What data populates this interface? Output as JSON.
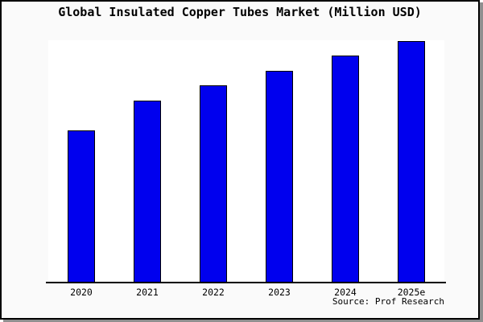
{
  "window": {
    "background_color": "#fafafa",
    "frame_border_color": "#000000",
    "shadow_color": "#8f8f8f"
  },
  "chart_data": {
    "type": "bar",
    "title": "Global Insulated Copper Tubes Market (Million USD)",
    "categories": [
      "2020",
      "2021",
      "2022",
      "2023",
      "2024",
      "2025e"
    ],
    "values": [
      62.8,
      75.1,
      81.4,
      87.4,
      93.7,
      99.7
    ],
    "value_note": "y-axis has no tick labels; values are relative (percent of plot height)",
    "xlabel": "",
    "ylabel": "",
    "ylim": [
      0,
      100
    ],
    "grid": false,
    "legend": null,
    "bar_color": "#0000ee",
    "bar_border_color": "#000000",
    "plot_background": "#ffffff",
    "axis_color": "#000000",
    "source_note": "Source: Prof Research"
  }
}
